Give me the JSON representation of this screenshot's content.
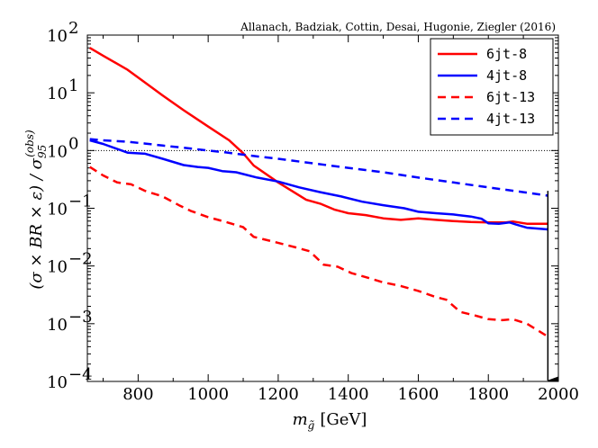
{
  "chart_data": {
    "type": "line",
    "annotation": "Allanach, Badziak, Cottin, Desai, Hugonie, Ziegler (2016)",
    "xlabel_symbol": "m",
    "xlabel_subscript": "g̃",
    "xlabel_unit": "[GeV]",
    "ylabel_main": "(σ × BR × ε) / σ",
    "ylabel_sub": "95",
    "ylabel_sup": "(obs)",
    "xlim": [
      655,
      2000
    ],
    "ylim_log10": [
      -4,
      2
    ],
    "x_ticks": [
      800,
      1000,
      1200,
      1400,
      1600,
      1800,
      2000
    ],
    "y_ticks": [
      {
        "exp": 2,
        "base": "10",
        "power": "2"
      },
      {
        "exp": 1,
        "base": "10",
        "power": "1"
      },
      {
        "exp": 0,
        "base": "10",
        "power": "0"
      },
      {
        "exp": -1,
        "base": "10",
        "power": "−1"
      },
      {
        "exp": -2,
        "base": "10",
        "power": "−2"
      },
      {
        "exp": -3,
        "base": "10",
        "power": "−3"
      },
      {
        "exp": -4,
        "base": "10",
        "power": "−4"
      }
    ],
    "reference_line": {
      "y": 1,
      "style": "dotted"
    },
    "limit_arrow": {
      "x": 1970,
      "from_y": 0.2,
      "to_y": 0.0001
    },
    "series": [
      {
        "name": "6jt-8",
        "color": "#ff0000",
        "dashed": false,
        "x": [
          662,
          700,
          770,
          820,
          870,
          930,
          1000,
          1060,
          1100,
          1130,
          1200,
          1280,
          1320,
          1360,
          1400,
          1450,
          1500,
          1550,
          1600,
          1650,
          1700,
          1750,
          1800,
          1850,
          1870,
          1910,
          1970
        ],
        "y": [
          60,
          44,
          25,
          15,
          9,
          5,
          2.6,
          1.5,
          0.9,
          0.55,
          0.28,
          0.14,
          0.12,
          0.095,
          0.082,
          0.076,
          0.067,
          0.063,
          0.067,
          0.063,
          0.06,
          0.058,
          0.057,
          0.057,
          0.059,
          0.054,
          0.054
        ]
      },
      {
        "name": "4jt-8",
        "color": "#0000ff",
        "dashed": false,
        "x": [
          662,
          700,
          770,
          820,
          870,
          930,
          970,
          1000,
          1040,
          1080,
          1140,
          1200,
          1260,
          1320,
          1380,
          1440,
          1500,
          1560,
          1600,
          1650,
          1700,
          1750,
          1780,
          1800,
          1830,
          1860,
          1880,
          1910,
          1970
        ],
        "y": [
          1.5,
          1.3,
          0.92,
          0.88,
          0.72,
          0.56,
          0.52,
          0.5,
          0.44,
          0.42,
          0.34,
          0.29,
          0.23,
          0.19,
          0.16,
          0.13,
          0.113,
          0.1,
          0.087,
          0.082,
          0.078,
          0.072,
          0.066,
          0.055,
          0.054,
          0.057,
          0.052,
          0.046,
          0.043
        ]
      },
      {
        "name": "6jt-13",
        "color": "#ff0000",
        "dashed": true,
        "x": [
          662,
          700,
          740,
          780,
          820,
          870,
          920,
          950,
          1000,
          1050,
          1100,
          1130,
          1190,
          1250,
          1290,
          1330,
          1370,
          1410,
          1450,
          1500,
          1550,
          1600,
          1650,
          1680,
          1720,
          1760,
          1800,
          1840,
          1870,
          1910,
          1970
        ],
        "y": [
          0.52,
          0.37,
          0.28,
          0.26,
          0.2,
          0.16,
          0.11,
          0.09,
          0.07,
          0.058,
          0.047,
          0.032,
          0.026,
          0.021,
          0.018,
          0.0105,
          0.0097,
          0.0075,
          0.0064,
          0.0052,
          0.0045,
          0.0037,
          0.0029,
          0.0026,
          0.0016,
          0.0014,
          0.0012,
          0.00115,
          0.0012,
          0.001,
          0.0006
        ]
      },
      {
        "name": "4jt-13",
        "color": "#0000ff",
        "dashed": true,
        "x": [
          662,
          700,
          770,
          820,
          870,
          930,
          1000,
          1050,
          1100,
          1150,
          1200,
          1300,
          1400,
          1500,
          1600,
          1700,
          1800,
          1900,
          1970
        ],
        "y": [
          1.58,
          1.5,
          1.42,
          1.32,
          1.22,
          1.12,
          1.0,
          0.93,
          0.85,
          0.78,
          0.72,
          0.6,
          0.5,
          0.42,
          0.34,
          0.28,
          0.23,
          0.19,
          0.165
        ]
      }
    ]
  }
}
